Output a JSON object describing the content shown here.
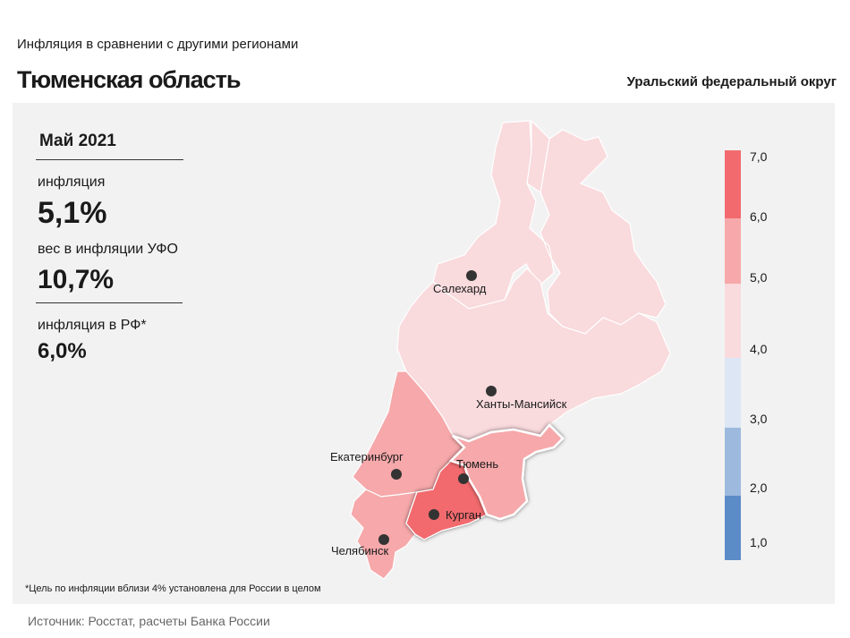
{
  "header": {
    "subtitle": "Инфляция в сравнении с другими регионами",
    "title": "Тюменская область",
    "district": "Уральский федеральный округ"
  },
  "stats": {
    "period": "Май 2021",
    "inflation_label": "инфляция",
    "inflation_value": "5,1%",
    "weight_label": "вес в инфляции УФО",
    "weight_value": "10,7%",
    "rf_label": "инфляция в РФ*",
    "rf_value": "6,0%"
  },
  "footnote": "*Цель по инфляции вблизи 4% установлена для России в целом",
  "source": "Источник: Росстат, расчеты Банка России",
  "cities": [
    {
      "name": "Салехард",
      "value": 4.7
    },
    {
      "name": "Ханты-Мансийск",
      "value": 4.7
    },
    {
      "name": "Екатеринбург",
      "value": 5.6
    },
    {
      "name": "Тюмень",
      "value": 5.1
    },
    {
      "name": "Курган",
      "value": 6.4
    },
    {
      "name": "Челябинск",
      "value": 5.6
    }
  ],
  "legend": {
    "ticks": [
      "7,0",
      "6,0",
      "5,0",
      "4,0",
      "3,0",
      "2,0",
      "1,0"
    ],
    "colors": [
      "#f26a6e",
      "#f6a8aa",
      "#f9dadd",
      "#dce6f4",
      "#9dbade",
      "#5b8cc8"
    ]
  },
  "colors": {
    "region_low": "#f9dadd",
    "region_mid": "#f6a8aa",
    "region_high": "#f26a6e",
    "panel": "#f2f2f2"
  }
}
